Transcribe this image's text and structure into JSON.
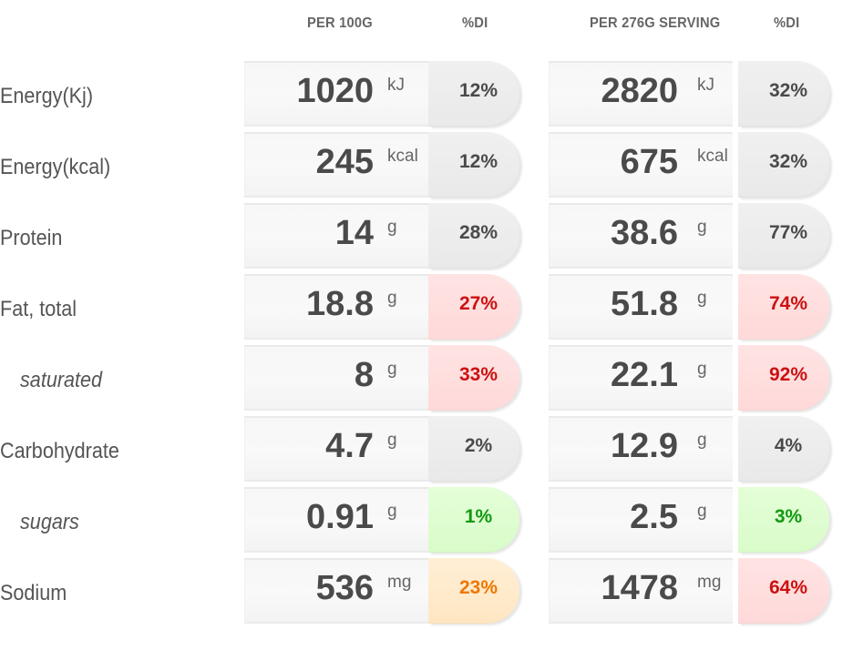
{
  "headers": {
    "per100": "PER 100G",
    "di1": "%DI",
    "perServing": "PER 276G SERVING",
    "di2": "%DI"
  },
  "rows": [
    {
      "label": "Energy(Kj)",
      "sub": false,
      "v100": "1020",
      "u100": "kJ",
      "di100": "12%",
      "c100": "grey",
      "vs": "2820",
      "us": "kJ",
      "dis": "32%",
      "cs": "grey"
    },
    {
      "label": "Energy(kcal)",
      "sub": false,
      "v100": "245",
      "u100": "kcal",
      "di100": "12%",
      "c100": "grey",
      "vs": "675",
      "us": "kcal",
      "dis": "32%",
      "cs": "grey"
    },
    {
      "label": "Protein",
      "sub": false,
      "v100": "14",
      "u100": "g",
      "di100": "28%",
      "c100": "grey",
      "vs": "38.6",
      "us": "g",
      "dis": "77%",
      "cs": "grey"
    },
    {
      "label": "Fat, total",
      "sub": false,
      "v100": "18.8",
      "u100": "g",
      "di100": "27%",
      "c100": "red",
      "vs": "51.8",
      "us": "g",
      "dis": "74%",
      "cs": "red"
    },
    {
      "label": "saturated",
      "sub": true,
      "v100": "8",
      "u100": "g",
      "di100": "33%",
      "c100": "red",
      "vs": "22.1",
      "us": "g",
      "dis": "92%",
      "cs": "red"
    },
    {
      "label": "Carbohydrate",
      "sub": false,
      "v100": "4.7",
      "u100": "g",
      "di100": "2%",
      "c100": "grey",
      "vs": "12.9",
      "us": "g",
      "dis": "4%",
      "cs": "grey"
    },
    {
      "label": "sugars",
      "sub": true,
      "v100": "0.91",
      "u100": "g",
      "di100": "1%",
      "c100": "green",
      "vs": "2.5",
      "us": "g",
      "dis": "3%",
      "cs": "green"
    },
    {
      "label": "Sodium",
      "sub": false,
      "v100": "536",
      "u100": "mg",
      "di100": "23%",
      "c100": "orange",
      "vs": "1478",
      "us": "mg",
      "dis": "64%",
      "cs": "red"
    }
  ],
  "colors": {
    "grey": "#4a4a4a",
    "red": "#cc1111",
    "green": "#119911",
    "orange": "#ee7700"
  }
}
